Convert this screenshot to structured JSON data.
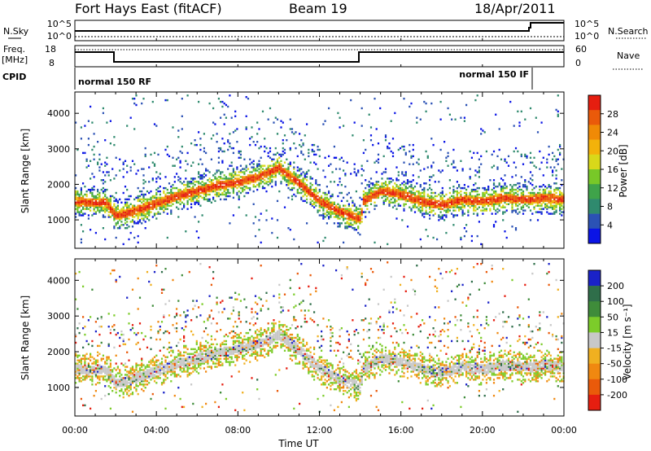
{
  "header": {
    "station": "Fort Hays East (fitACF)",
    "beam": "Beam 19",
    "date": "18/Apr/2011"
  },
  "noise_panel": {
    "left_label": "N.Sky",
    "left_ticks": [
      "10^5",
      "10^0"
    ],
    "right_ticks": [
      "10^5",
      "10^0"
    ],
    "right_label": "N.Search"
  },
  "freq_panel": {
    "left_label_1": "Freq.",
    "left_label_2": "[MHz]",
    "left_ticks": [
      "18",
      "8"
    ],
    "right_ticks": [
      "60",
      "0"
    ],
    "right_label": "Nave"
  },
  "cpid_panel": {
    "label": "CPID",
    "mode_1": "normal 150 RF",
    "mode_2": "normal 150 IF"
  },
  "chart_data": [
    {
      "type": "heatmap",
      "name": "power",
      "ylabel": "Slant Range [km]",
      "yticks": [
        "1000",
        "2000",
        "3000",
        "4000"
      ],
      "colorbar_label": "Power [dB]",
      "colorbar_ticks": [
        "4",
        "8",
        "12",
        "16",
        "20",
        "24",
        "28"
      ],
      "colors": [
        "#0a14e6",
        "#2b52b5",
        "#2f8a6e",
        "#3fa34a",
        "#78c828",
        "#d9d81a",
        "#f3b20a",
        "#f08a06",
        "#ea5a0a",
        "#e61e10"
      ],
      "band_center_km": [
        [
          0.0,
          1500
        ],
        [
          0.5,
          1480
        ],
        [
          1.0,
          1470
        ],
        [
          1.5,
          1470
        ],
        [
          2.0,
          1100
        ],
        [
          3.0,
          1250
        ],
        [
          4.0,
          1450
        ],
        [
          5.0,
          1650
        ],
        [
          6.0,
          1800
        ],
        [
          7.0,
          1950
        ],
        [
          8.0,
          2050
        ],
        [
          9.0,
          2200
        ],
        [
          10.0,
          2450
        ],
        [
          11.0,
          2000
        ],
        [
          12.0,
          1500
        ],
        [
          13.0,
          1200
        ],
        [
          14.0,
          1000
        ],
        [
          14.1,
          1500
        ],
        [
          15.0,
          1800
        ],
        [
          16.0,
          1700
        ],
        [
          17.0,
          1500
        ],
        [
          18.0,
          1400
        ],
        [
          19.0,
          1550
        ],
        [
          20.0,
          1500
        ],
        [
          21.0,
          1600
        ],
        [
          22.0,
          1550
        ],
        [
          23.0,
          1600
        ],
        [
          24.0,
          1550
        ]
      ]
    },
    {
      "type": "heatmap",
      "name": "velocity",
      "ylabel": "Slant Range [km]",
      "yticks": [
        "1000",
        "2000",
        "3000",
        "4000"
      ],
      "colorbar_label": "Velocity [m s⁻¹]",
      "colorbar_ticks": [
        "200",
        "100",
        "50",
        "15",
        "-15",
        "-50",
        "-100",
        "-200"
      ],
      "colors": [
        "#1a22c8",
        "#2f6e4a",
        "#3f8c3a",
        "#7ccc2a",
        "#c8c8c8",
        "#f0b020",
        "#f08810",
        "#ea5a0a",
        "#e61e10"
      ]
    }
  ],
  "xaxis": {
    "label": "Time UT",
    "ticks": [
      "00:00",
      "04:00",
      "08:00",
      "12:00",
      "16:00",
      "20:00",
      "00:00"
    ],
    "range_hours": [
      0,
      24
    ]
  }
}
